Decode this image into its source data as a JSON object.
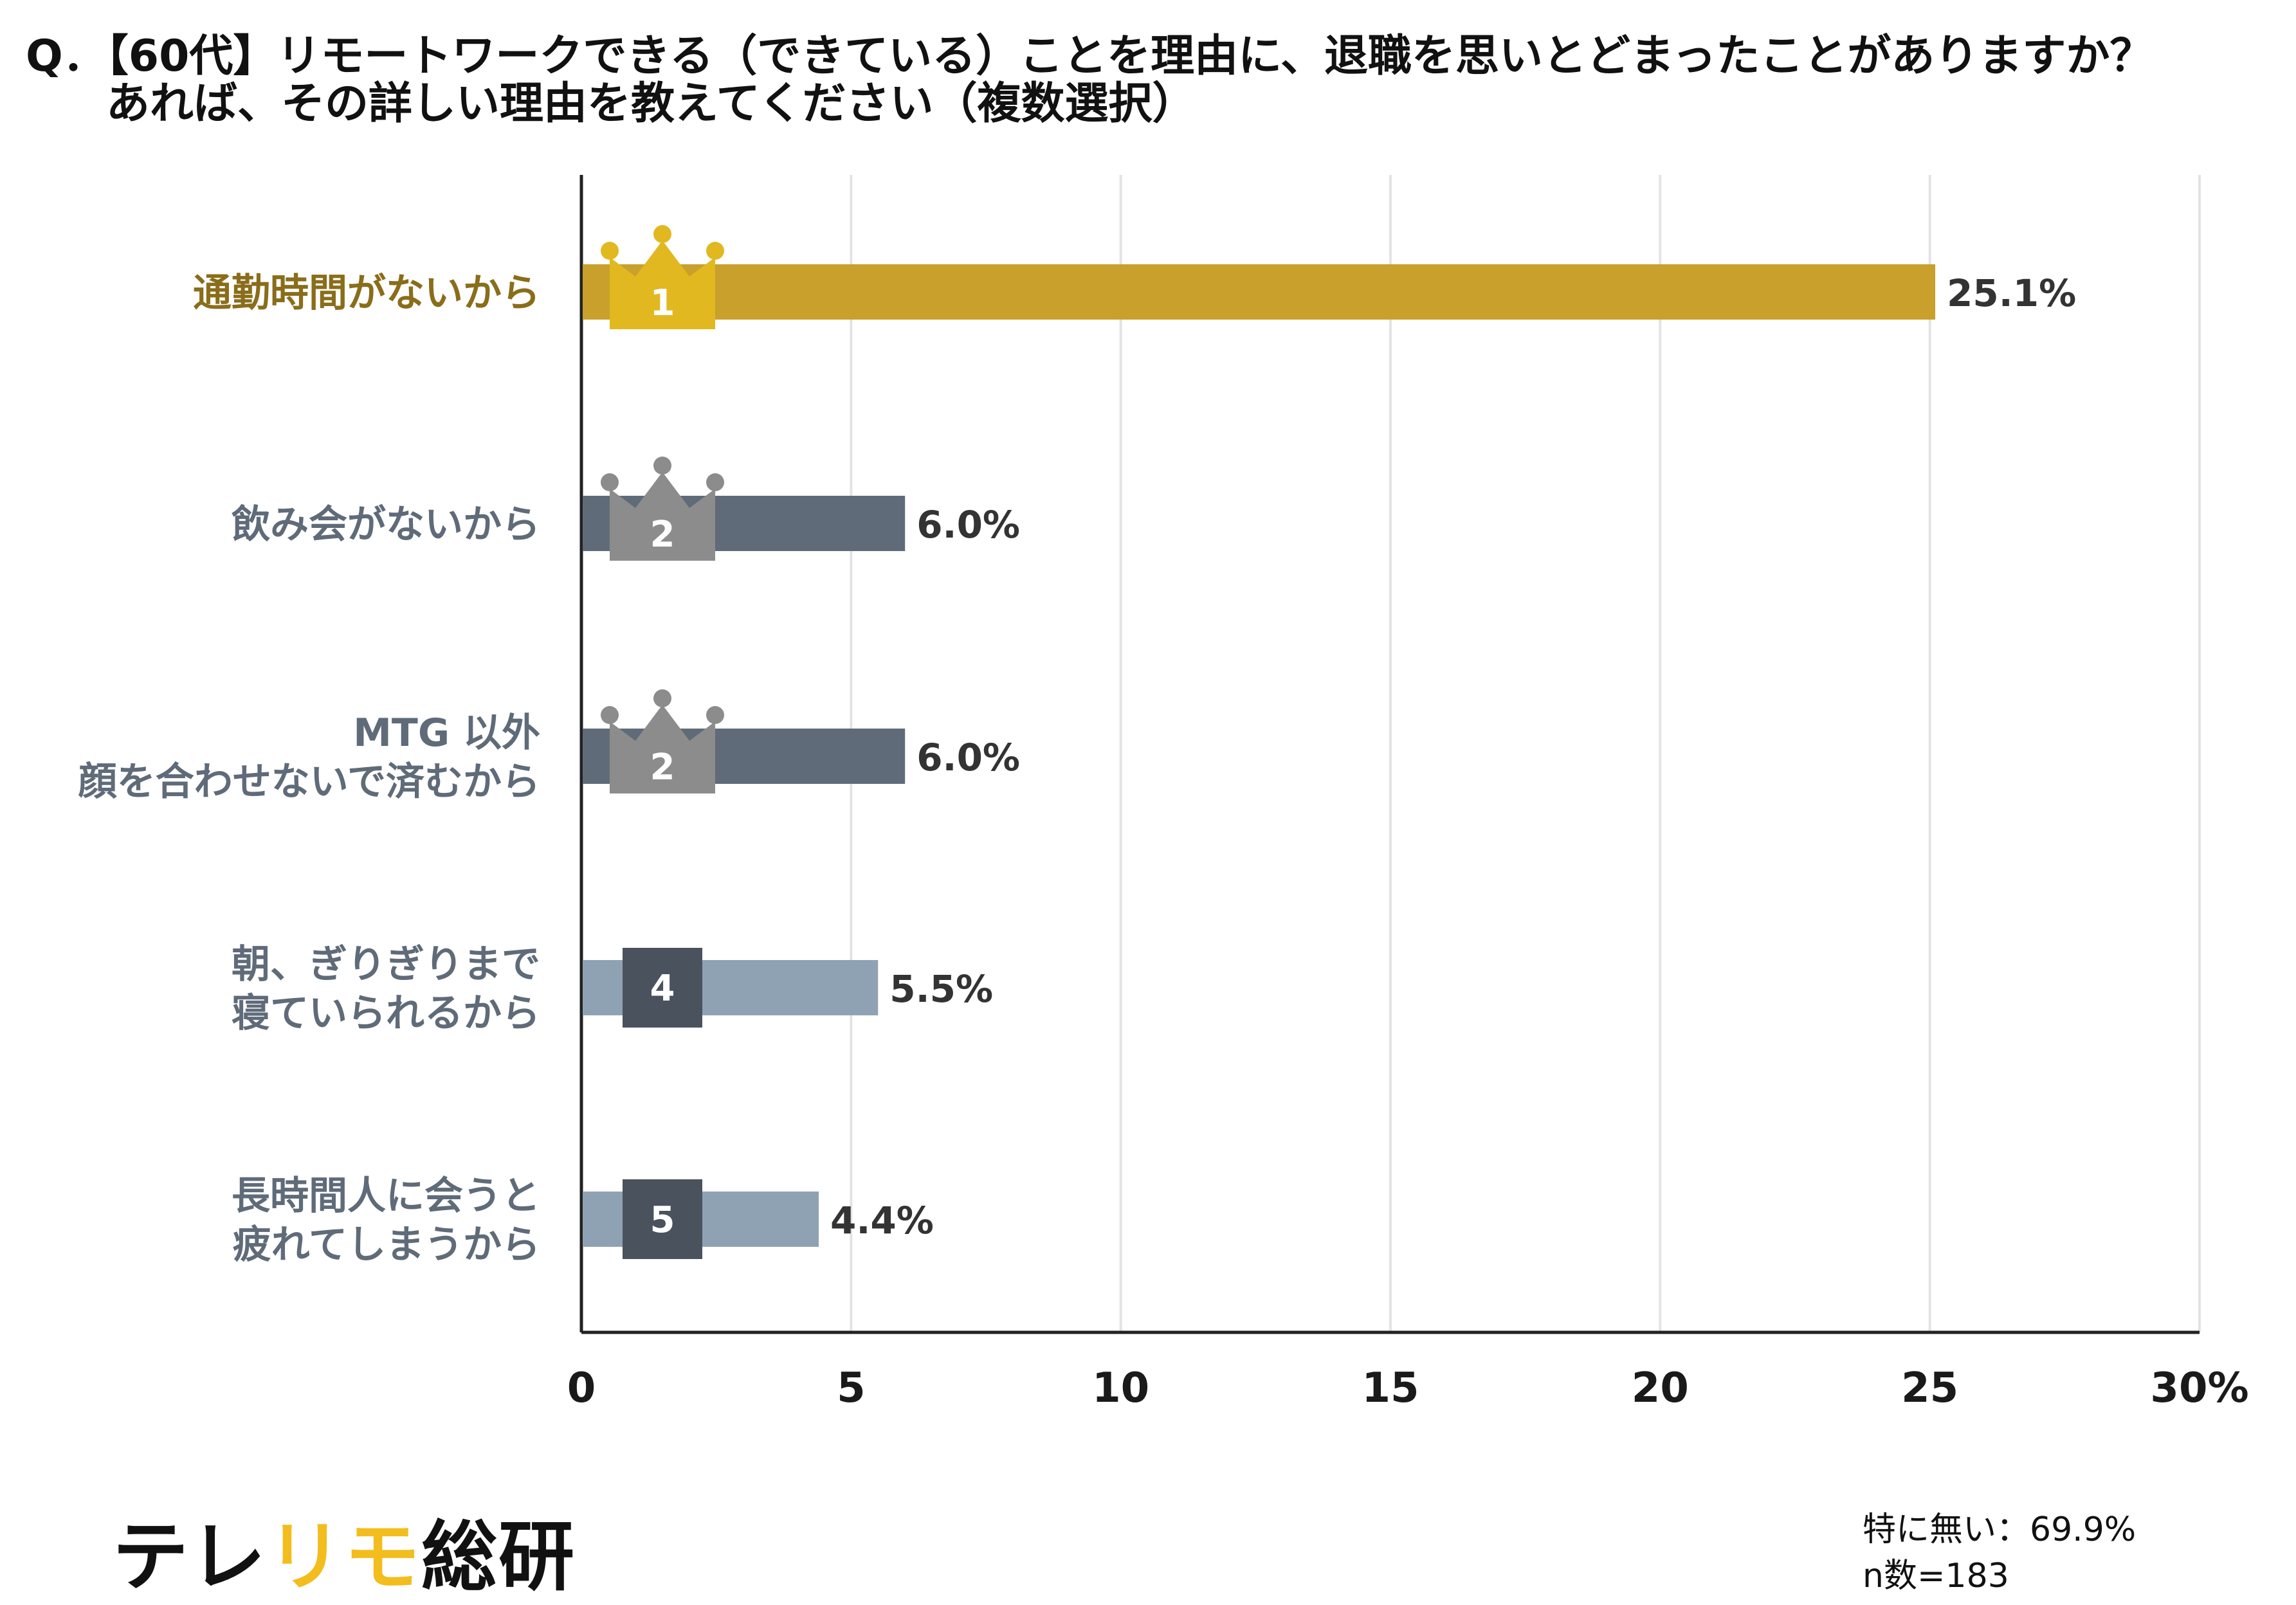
{
  "question": {
    "line1": "Q．【60代】リモートワークできる（できている）ことを理由に、退職を思いとどまったことがありますか？",
    "line2": "あれば、その詳しい理由を教えてください（複数選択）"
  },
  "chart_data": {
    "type": "bar",
    "orientation": "horizontal",
    "categories": [
      [
        "通勤時間がないから"
      ],
      [
        "飲み会がないから"
      ],
      [
        "MTG 以外",
        "顔を合わせないで済むから"
      ],
      [
        "朝、ぎりぎりまで",
        "寝ていられるから"
      ],
      [
        "長時間人に会うと",
        "疲れてしまうから"
      ]
    ],
    "values": [
      25.1,
      6.0,
      6.0,
      5.5,
      4.4
    ],
    "value_labels": [
      "25.1%",
      "6.0%",
      "6.0%",
      "5.5%",
      "4.4%"
    ],
    "ranks": [
      "1",
      "2",
      "2",
      "4",
      "5"
    ],
    "rank_badge": [
      "crown",
      "crown",
      "crown",
      "square",
      "square"
    ],
    "xlim": [
      0,
      30
    ],
    "xticks": [
      "0",
      "5",
      "10",
      "15",
      "20",
      "25",
      "30%"
    ],
    "grid": true,
    "colors": {
      "bars": [
        "#c9a02b",
        "#5f6b79",
        "#5f6b79",
        "#8fa2b3",
        "#8fa2b3"
      ],
      "labels": [
        "#8a6d1a",
        "#5f6b79",
        "#5f6b79",
        "#5f6b79",
        "#5f6b79"
      ],
      "crown_gold": "#e2b820",
      "crown_silver": "#8c8c8c",
      "square_badge": "#4a525e",
      "grid": "#e3e3e3",
      "axis": "#222222"
    }
  },
  "footer": {
    "logo_part1": "テレ",
    "logo_part2": "リモ",
    "logo_part3": "総研",
    "note1": "特に無い：69.9%",
    "note2": "n数=183"
  }
}
